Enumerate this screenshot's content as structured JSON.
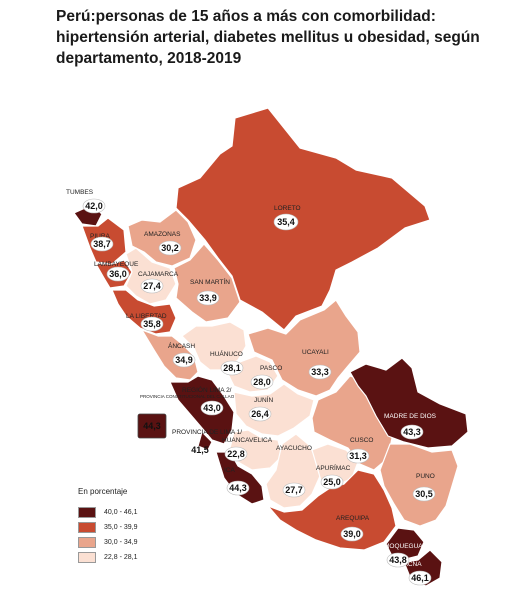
{
  "title": "Perú:personas de 15 años a más con comorbilidad: hipertensión arterial, diabetes mellitus u obesidad, según departamento, 2018-2019",
  "legend": {
    "title": "En porcentaje",
    "items": [
      {
        "label": "40,0 - 46,1",
        "color": "#5a1212"
      },
      {
        "label": "35,0 - 39,9",
        "color": "#c84b31"
      },
      {
        "label": "30,0 - 34,9",
        "color": "#e9a58c"
      },
      {
        "label": "22,8 - 28,1",
        "color": "#fbe0d3"
      }
    ]
  },
  "regions": [
    {
      "name": "TUMBES",
      "value": "42,0",
      "color": "#5a1212"
    },
    {
      "name": "PIURA",
      "value": "38,7",
      "color": "#c84b31"
    },
    {
      "name": "LAMBAYEQUE",
      "value": "36,0",
      "color": "#c84b31"
    },
    {
      "name": "CAJAMARCA",
      "value": "27,4",
      "color": "#fbe0d3"
    },
    {
      "name": "AMAZONAS",
      "value": "30,2",
      "color": "#e9a58c"
    },
    {
      "name": "LORETO",
      "value": "35,4",
      "color": "#c84b31"
    },
    {
      "name": "SAN MARTÍN",
      "value": "33,9",
      "color": "#e9a58c"
    },
    {
      "name": "LA LIBERTAD",
      "value": "35,8",
      "color": "#c84b31"
    },
    {
      "name": "ÁNCASH",
      "value": "34,9",
      "color": "#e9a58c"
    },
    {
      "name": "HUÁNUCO",
      "value": "28,1",
      "color": "#fbe0d3"
    },
    {
      "name": "PASCO",
      "value": "28,0",
      "color": "#fbe0d3"
    },
    {
      "name": "UCAYALI",
      "value": "33,3",
      "color": "#e9a58c"
    },
    {
      "name": "REGIÓN LIMA 2/",
      "value": "43,0",
      "color": "#5a1212"
    },
    {
      "name": "PROVINCIA DE LIMA 1/",
      "value": "41,5",
      "color": "#5a1212"
    },
    {
      "name": "PROVINCIA CONSTITUCIONAL DEL CALLAO",
      "value": "44,3",
      "color": "#5a1212"
    },
    {
      "name": "JUNÍN",
      "value": "26,4",
      "color": "#fbe0d3"
    },
    {
      "name": "HUANCAVELICA",
      "value": "22,8",
      "color": "#fbe0d3"
    },
    {
      "name": "ICA",
      "value": "44,3",
      "color": "#5a1212"
    },
    {
      "name": "AYACUCHO",
      "value": "27,7",
      "color": "#fbe0d3"
    },
    {
      "name": "APURÍMAC",
      "value": "25,0",
      "color": "#fbe0d3"
    },
    {
      "name": "CUSCO",
      "value": "31,3",
      "color": "#e9a58c"
    },
    {
      "name": "MADRE DE DIOS",
      "value": "43,3",
      "color": "#5a1212"
    },
    {
      "name": "PUNO",
      "value": "30,5",
      "color": "#e9a58c"
    },
    {
      "name": "AREQUIPA",
      "value": "39,0",
      "color": "#c84b31"
    },
    {
      "name": "MOQUEGUA",
      "value": "43,8",
      "color": "#5a1212"
    },
    {
      "name": "TACNA",
      "value": "46,1",
      "color": "#5a1212"
    }
  ]
}
